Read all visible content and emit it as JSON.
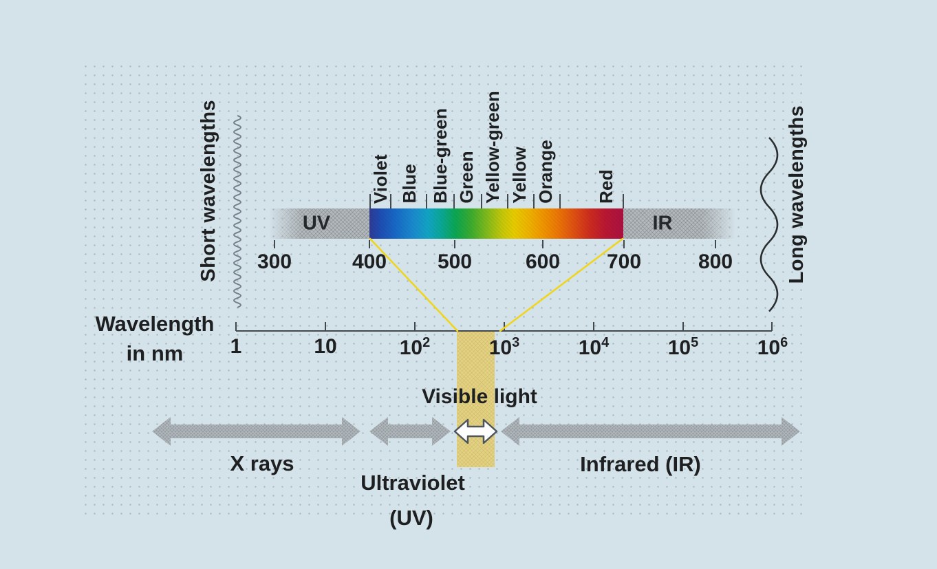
{
  "figure": {
    "side_labels": {
      "left": "Short wavelengths",
      "right": "Long wavelengths"
    },
    "axis_title": {
      "line1": "Wavelength",
      "line2": "in nm"
    },
    "spectrum_bar": {
      "uv_label": "UV",
      "ir_label": "IR",
      "color_labels": [
        "Violet",
        "Blue",
        "Blue-green",
        "Green",
        "Yellow-green",
        "Yellow",
        "Orange",
        "Red"
      ],
      "nm_tick_labels": [
        "300",
        "400",
        "500",
        "600",
        "700",
        "800"
      ]
    },
    "log_axis": {
      "tick_labels": [
        {
          "base": "1",
          "exp": ""
        },
        {
          "base": "10",
          "exp": ""
        },
        {
          "base": "10",
          "exp": "2"
        },
        {
          "base": "10",
          "exp": "3"
        },
        {
          "base": "10",
          "exp": "4"
        },
        {
          "base": "10",
          "exp": "5"
        },
        {
          "base": "10",
          "exp": "6"
        }
      ]
    },
    "regions": {
      "visible_light": "Visible light",
      "x_rays": "X rays",
      "ultraviolet": "Ultraviolet",
      "ultraviolet_abbr": "(UV)",
      "infrared": "Infrared (IR)"
    }
  },
  "colors": {
    "background": "#d4e2e9",
    "bar_gray": "#b4b9bc",
    "arrow_gray": "#969ea4",
    "yellow_band": "#e3d184",
    "yellow_line": "#f0d51a",
    "text": "#1e1f21",
    "spectrum_start": "#2e3a94",
    "spectrum_end": "#aa1140"
  },
  "chart_data": {
    "type": "diagram",
    "title": "Electromagnetic spectrum — visible light band",
    "visible_spectrum_range_nm": [
      400,
      700
    ],
    "linear_scale_ticks_nm": [
      300,
      400,
      500,
      600,
      700,
      800
    ],
    "log_scale_ticks_nm": [
      1,
      10,
      100,
      1000,
      10000,
      100000,
      1000000
    ],
    "color_band_labels": [
      "Violet",
      "Blue",
      "Blue-green",
      "Green",
      "Yellow-green",
      "Yellow",
      "Orange",
      "Red"
    ],
    "spectrum_regions": [
      "X rays",
      "Ultraviolet (UV)",
      "Visible light",
      "Infrared (IR)"
    ]
  }
}
